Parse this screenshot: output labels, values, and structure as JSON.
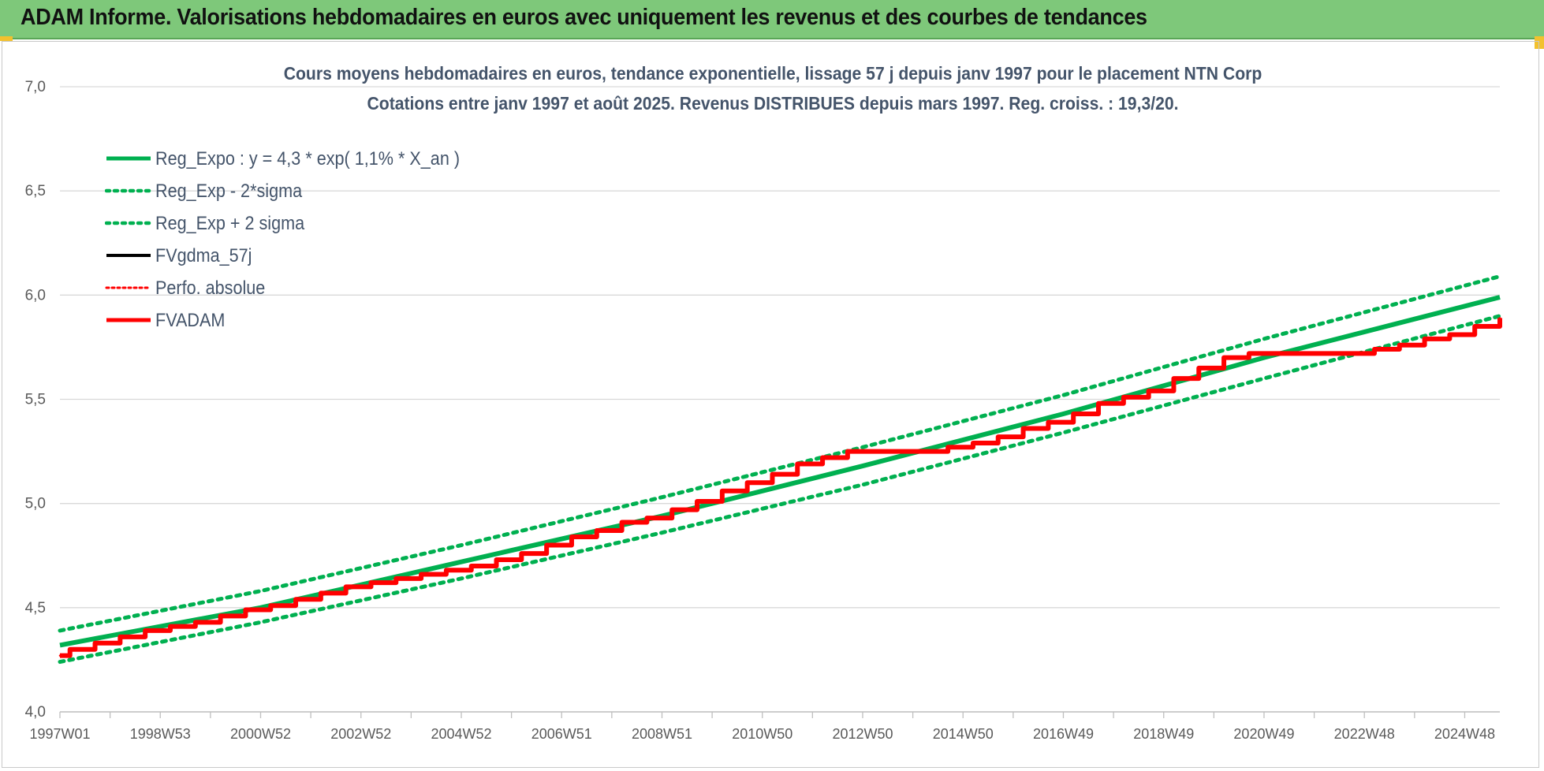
{
  "header": {
    "title": "ADAM Informe. Valorisations hebdomadaires en euros avec uniquement les revenus et des courbes de tendances"
  },
  "colors": {
    "header_bg": "#7ec87a",
    "trend": "#00b050",
    "fv": "#000000",
    "adam": "#ff0000",
    "title_text": "#44546a"
  },
  "chart_data": {
    "type": "line",
    "title": "Cours moyens hebdomadaires en euros, tendance exponentielle, lissage 57 j depuis janv 1997 pour le placement NTN Corp",
    "subtitle": "Cotations entre janv 1997 et août 2025. Revenus DISTRIBUES depuis mars 1997. Reg. croiss. : 19,3/20.",
    "xlabel": "",
    "ylabel": "",
    "x_tick_labels": [
      "1997W01",
      "1998W53",
      "2000W52",
      "2002W52",
      "2004W52",
      "2006W51",
      "2008W51",
      "2010W50",
      "2012W50",
      "2014W50",
      "2016W49",
      "2018W49",
      "2020W49",
      "2022W48",
      "2024W48"
    ],
    "x_tick_years": [
      1997.0,
      1999.0,
      2001.0,
      2003.0,
      2005.0,
      2007.0,
      2009.0,
      2011.0,
      2013.0,
      2015.0,
      2017.0,
      2019.0,
      2021.0,
      2023.0,
      2025.0
    ],
    "xlim": [
      1997.0,
      2025.7
    ],
    "ylim": [
      4.0,
      7.0
    ],
    "y_ticks": [
      4.0,
      4.5,
      5.0,
      5.5,
      6.0,
      6.5,
      7.0
    ],
    "y_tick_labels": [
      "4,0",
      "4,5",
      "5,0",
      "5,5",
      "6,0",
      "6,5",
      "7,0"
    ],
    "grid": true,
    "legend_position": "top-left",
    "series": [
      {
        "name": "Reg_Expo : y = 4,3 * exp( 1,1% *  X_an )",
        "style": "solid-thick",
        "color": "#00b050",
        "x": [
          1997.0,
          2001.0,
          2005.0,
          2009.0,
          2013.0,
          2017.0,
          2021.0,
          2025.7
        ],
        "y": [
          4.32,
          4.5,
          4.72,
          4.94,
          5.18,
          5.43,
          5.7,
          5.99
        ]
      },
      {
        "name": "Reg_Exp - 2*sigma",
        "style": "dotted",
        "color": "#00b050",
        "x": [
          1997.0,
          2001.0,
          2005.0,
          2009.0,
          2013.0,
          2017.0,
          2021.0,
          2025.7
        ],
        "y": [
          4.24,
          4.43,
          4.64,
          4.86,
          5.09,
          5.34,
          5.6,
          5.9
        ]
      },
      {
        "name": "Reg_Exp + 2 sigma",
        "style": "dotted",
        "color": "#00b050",
        "x": [
          1997.0,
          2001.0,
          2005.0,
          2009.0,
          2013.0,
          2017.0,
          2021.0,
          2025.7
        ],
        "y": [
          4.39,
          4.58,
          4.8,
          5.03,
          5.27,
          5.52,
          5.79,
          6.09
        ]
      },
      {
        "name": "FVgdma_57j",
        "style": "solid",
        "color": "#000000",
        "x": [
          1997.0,
          1997.2,
          1997.7,
          1998.2,
          1998.7,
          1999.2,
          1999.7,
          2000.2,
          2000.7,
          2001.2,
          2001.7,
          2002.2,
          2002.7,
          2003.2,
          2003.7,
          2004.2,
          2004.7,
          2005.2,
          2005.7,
          2006.2,
          2006.7,
          2007.2,
          2007.7,
          2008.2,
          2008.7,
          2009.2,
          2009.7,
          2010.2,
          2010.7,
          2011.2,
          2011.7,
          2012.2,
          2012.7,
          2013.2,
          2013.7,
          2014.2,
          2014.7,
          2015.2,
          2015.7,
          2016.2,
          2016.7,
          2017.2,
          2017.7,
          2018.2,
          2018.7,
          2019.2,
          2019.7,
          2020.2,
          2020.7,
          2021.2,
          2021.7,
          2022.2,
          2022.7,
          2023.2,
          2023.7,
          2024.2,
          2024.7,
          2025.2,
          2025.7
        ],
        "y": [
          4.27,
          4.3,
          4.33,
          4.36,
          4.39,
          4.41,
          4.43,
          4.46,
          4.49,
          4.51,
          4.54,
          4.57,
          4.6,
          4.62,
          4.64,
          4.66,
          4.68,
          4.7,
          4.73,
          4.76,
          4.8,
          4.84,
          4.87,
          4.91,
          4.93,
          4.97,
          5.01,
          5.06,
          5.1,
          5.14,
          5.19,
          5.22,
          5.25,
          5.25,
          5.25,
          5.25,
          5.27,
          5.29,
          5.32,
          5.36,
          5.39,
          5.43,
          5.48,
          5.51,
          5.54,
          5.6,
          5.65,
          5.7,
          5.72,
          5.72,
          5.72,
          5.72,
          5.72,
          5.74,
          5.76,
          5.79,
          5.81,
          5.85,
          5.89
        ]
      },
      {
        "name": "Perfo. absolue",
        "style": "dotted",
        "color": "#ff0000",
        "x": [
          1997.0,
          1997.2,
          1997.7,
          1998.2,
          1998.7,
          1999.2,
          1999.7,
          2000.2,
          2000.7,
          2001.2,
          2001.7,
          2002.2,
          2002.7,
          2003.2,
          2003.7,
          2004.2,
          2004.7,
          2005.2,
          2005.7,
          2006.2,
          2006.7,
          2007.2,
          2007.7,
          2008.2,
          2008.7,
          2009.2,
          2009.7,
          2010.2,
          2010.7,
          2011.2,
          2011.7,
          2012.2,
          2012.7,
          2013.2,
          2013.7,
          2014.2,
          2014.7,
          2015.2,
          2015.7,
          2016.2,
          2016.7,
          2017.2,
          2017.7,
          2018.2,
          2018.7,
          2019.2,
          2019.7,
          2020.2,
          2020.7,
          2021.2,
          2021.7,
          2022.2,
          2022.7,
          2023.2,
          2023.7,
          2024.2,
          2024.7,
          2025.2,
          2025.7
        ],
        "y": [
          4.27,
          4.3,
          4.33,
          4.36,
          4.39,
          4.41,
          4.43,
          4.46,
          4.49,
          4.51,
          4.54,
          4.57,
          4.6,
          4.62,
          4.64,
          4.66,
          4.68,
          4.7,
          4.73,
          4.76,
          4.8,
          4.84,
          4.87,
          4.91,
          4.93,
          4.97,
          5.01,
          5.06,
          5.1,
          5.14,
          5.19,
          5.22,
          5.25,
          5.25,
          5.25,
          5.25,
          5.27,
          5.29,
          5.32,
          5.36,
          5.39,
          5.43,
          5.48,
          5.51,
          5.54,
          5.6,
          5.65,
          5.7,
          5.72,
          5.72,
          5.72,
          5.72,
          5.72,
          5.74,
          5.76,
          5.79,
          5.81,
          5.85,
          5.89
        ]
      },
      {
        "name": "FVADAM",
        "style": "step-thick",
        "color": "#ff0000",
        "x": [
          1997.0,
          1997.2,
          1997.7,
          1998.2,
          1998.7,
          1999.2,
          1999.7,
          2000.2,
          2000.7,
          2001.2,
          2001.7,
          2002.2,
          2002.7,
          2003.2,
          2003.7,
          2004.2,
          2004.7,
          2005.2,
          2005.7,
          2006.2,
          2006.7,
          2007.2,
          2007.7,
          2008.2,
          2008.7,
          2009.2,
          2009.7,
          2010.2,
          2010.7,
          2011.2,
          2011.7,
          2012.2,
          2012.7,
          2013.2,
          2013.7,
          2014.2,
          2014.7,
          2015.2,
          2015.7,
          2016.2,
          2016.7,
          2017.2,
          2017.7,
          2018.2,
          2018.7,
          2019.2,
          2019.7,
          2020.2,
          2020.7,
          2021.2,
          2021.7,
          2022.2,
          2022.7,
          2023.2,
          2023.7,
          2024.2,
          2024.7,
          2025.2,
          2025.7
        ],
        "y": [
          4.27,
          4.3,
          4.33,
          4.36,
          4.39,
          4.41,
          4.43,
          4.46,
          4.49,
          4.51,
          4.54,
          4.57,
          4.6,
          4.62,
          4.64,
          4.66,
          4.68,
          4.7,
          4.73,
          4.76,
          4.8,
          4.84,
          4.87,
          4.91,
          4.93,
          4.97,
          5.01,
          5.06,
          5.1,
          5.14,
          5.19,
          5.22,
          5.25,
          5.25,
          5.25,
          5.25,
          5.27,
          5.29,
          5.32,
          5.36,
          5.39,
          5.43,
          5.48,
          5.51,
          5.54,
          5.6,
          5.65,
          5.7,
          5.72,
          5.72,
          5.72,
          5.72,
          5.72,
          5.74,
          5.76,
          5.79,
          5.81,
          5.85,
          5.89
        ]
      }
    ]
  }
}
